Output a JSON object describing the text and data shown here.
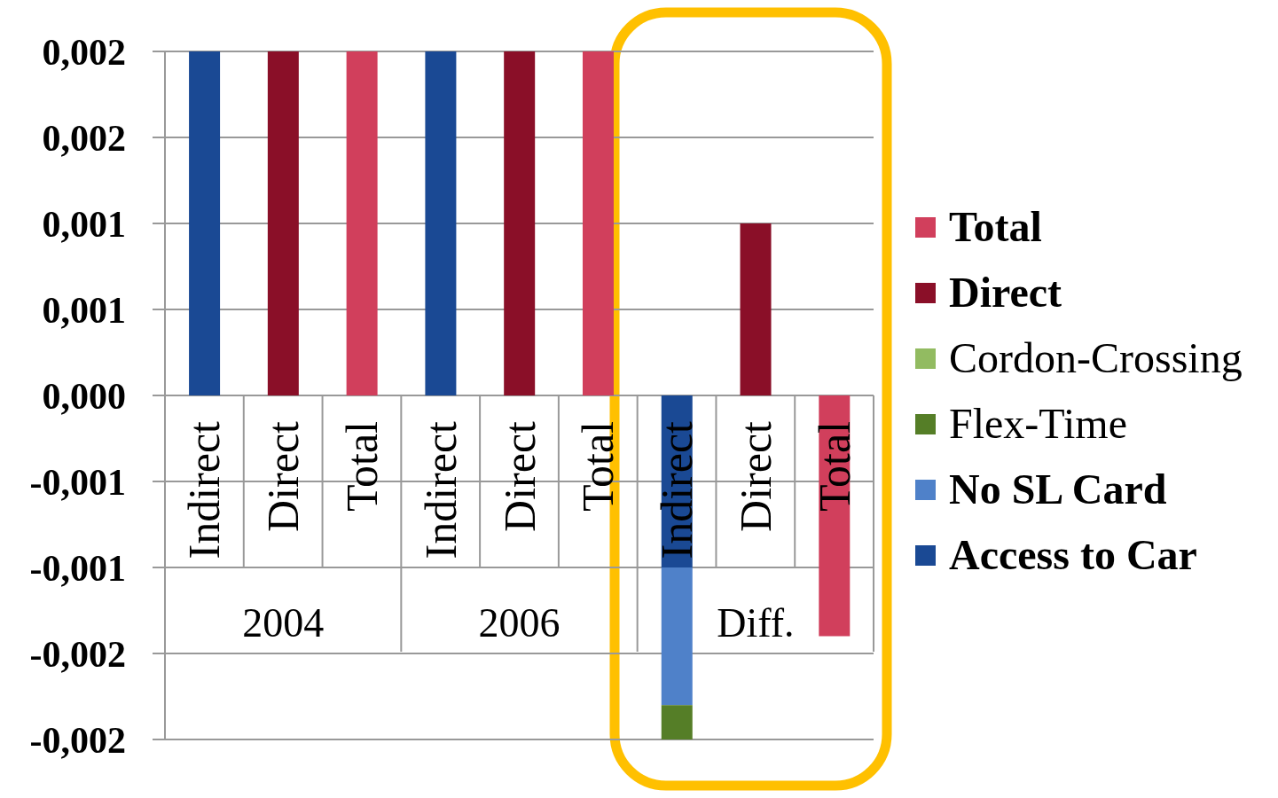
{
  "chart_data": {
    "type": "bar",
    "stacked": true,
    "categories": [
      "Indirect",
      "Direct",
      "Total",
      "Indirect",
      "Direct",
      "Total",
      "Indirect",
      "Direct",
      "Total"
    ],
    "series": [
      {
        "name": "Access to Car",
        "color": "#1a4994",
        "values": [
          0.002,
          null,
          null,
          0.002,
          null,
          null,
          -0.001,
          null,
          null
        ]
      },
      {
        "name": "No SL Card",
        "color": "#4f81c9",
        "values": [
          null,
          null,
          null,
          null,
          null,
          null,
          -0.0008,
          null,
          null
        ]
      },
      {
        "name": "Flex-Time",
        "color": "#557e27",
        "values": [
          null,
          null,
          null,
          null,
          null,
          null,
          -0.0002,
          null,
          null
        ]
      },
      {
        "name": "Cordon-Crossing",
        "color": "#92bb61",
        "values": [
          null,
          null,
          null,
          null,
          null,
          null,
          null,
          null,
          null
        ]
      },
      {
        "name": "Direct",
        "color": "#8a0f28",
        "values": [
          null,
          0.002,
          null,
          null,
          0.002,
          null,
          null,
          0.001,
          null
        ]
      },
      {
        "name": "Total",
        "color": "#d13f5c",
        "values": [
          null,
          null,
          0.002,
          null,
          null,
          0.002,
          null,
          null,
          -0.0014
        ]
      }
    ],
    "ylim": [
      -0.002,
      0.002
    ],
    "yticks": [
      {
        "value": -0.002,
        "label": "-0,002"
      },
      {
        "value": -0.0015,
        "label": "-0,002"
      },
      {
        "value": -0.001,
        "label": "-0,001"
      },
      {
        "value": -0.0005,
        "label": "-0,001"
      },
      {
        "value": 0,
        "label": "0,000"
      },
      {
        "value": 0.0005,
        "label": "0,001"
      },
      {
        "value": 0.001,
        "label": "0,001"
      },
      {
        "value": 0.0015,
        "label": "0,002"
      },
      {
        "value": 0.002,
        "label": "0,002"
      }
    ],
    "grid": "y",
    "legend": "right",
    "annotations": [
      "2004",
      "2006",
      "Diff."
    ]
  }
}
